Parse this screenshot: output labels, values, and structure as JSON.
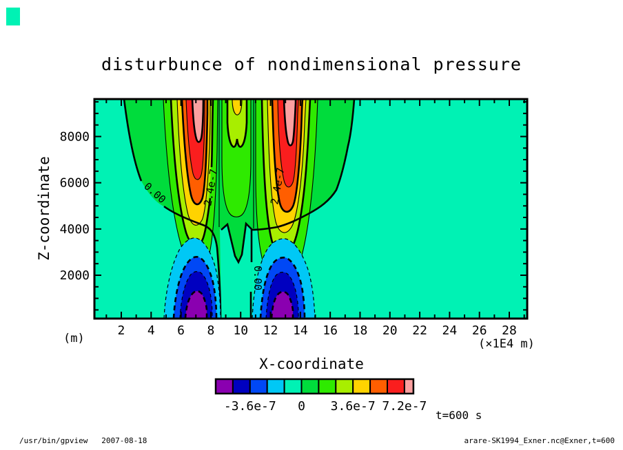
{
  "title": "disturbunce of nondimensional pressure",
  "axes": {
    "x": {
      "label": "X-coordinate",
      "unit_left": "(m)",
      "unit_right": "(×1E4 m)",
      "major_ticks": [
        2,
        4,
        6,
        8,
        10,
        12,
        14,
        16,
        18,
        20,
        22,
        24,
        26,
        28
      ],
      "range": [
        0.2,
        29.2
      ]
    },
    "z": {
      "label": "Z-coordinate",
      "major_ticks": [
        2000,
        4000,
        6000,
        8000
      ],
      "minor_step": 500,
      "range": [
        125,
        9620
      ]
    }
  },
  "colorbar": {
    "colors": [
      "#8a00b0",
      "#0000c0",
      "#0048f5",
      "#00c8f5",
      "#00f2b4",
      "#00dc3c",
      "#2eea00",
      "#a8ee00",
      "#ffd300",
      "#ff5e00",
      "#fa1e1e",
      "#fca0a0"
    ],
    "labels": [
      {
        "text": "-3.6e-7",
        "boundary": 2
      },
      {
        "text": "0",
        "boundary": 5
      },
      {
        "text": "3.6e-7",
        "boundary": 8
      },
      {
        "text": "7.2e-7",
        "boundary": 11
      }
    ]
  },
  "contour_labels": {
    "zero": "0.00",
    "pos": "2.4e-7"
  },
  "annotations": {
    "time": "t=600 s"
  },
  "footer": {
    "left": "/usr/bin/gpview   2007-08-18",
    "right": "arare-SK1994_Exner.nc@Exner,t=600"
  },
  "chart_data": {
    "type": "heatmap",
    "subtype": "filled-contour",
    "title": "disturbunce of nondimensional pressure",
    "xlabel": "X-coordinate",
    "ylabel": "Z-coordinate",
    "x_unit": "×1E4 m",
    "y_unit": "m",
    "x_ticks": [
      2,
      4,
      6,
      8,
      10,
      12,
      14,
      16,
      18,
      20,
      22,
      24,
      26,
      28
    ],
    "x_range": [
      0.2,
      29.2
    ],
    "y_ticks": [
      2000,
      4000,
      6000,
      8000
    ],
    "y_range": [
      125,
      9620
    ],
    "time": "t=600 s",
    "contour_interval": 1.2e-07,
    "thick_contour_interval": 2.4e-07,
    "labeled_contours": [
      "0.00",
      "2.4e-7"
    ],
    "negative_contour_style": "dashed",
    "levels": [
      -4.8e-07,
      -3.6e-07,
      -2.4e-07,
      -1.2e-07,
      0,
      1.2e-07,
      2.4e-07,
      3.6e-07,
      4.8e-07,
      6e-07,
      7.2e-07
    ],
    "colorbar_labels": [
      "-3.6e-7",
      "0",
      "3.6e-7",
      "7.2e-7"
    ],
    "palette": [
      "#8a00b0",
      "#0000c0",
      "#0048f5",
      "#00c8f5",
      "#00f2b4",
      "#00dc3c",
      "#2eea00",
      "#a8ee00",
      "#ffd300",
      "#ff5e00",
      "#fa1e1e",
      "#fca0a0"
    ],
    "background_value_band": [
      -1.2e-07,
      0
    ],
    "features": [
      {
        "name": "positive pressure plume",
        "x_center_x1e4m": 7,
        "z_extent_m": [
          4200,
          9600
        ],
        "peak": "> 7.2e-7 (pink core near z=8500-9600)"
      },
      {
        "name": "positive pressure plume",
        "x_center_x1e4m": 13,
        "z_extent_m": [
          4200,
          9600
        ],
        "peak": "> 7.2e-7 (pink core near z=8500-9600)"
      },
      {
        "name": "weak positive column",
        "x_center_x1e4m": 10.5,
        "z_extent_m": [
          7200,
          9600
        ],
        "peak": "~4.8e-7 (yellow cap at top)"
      },
      {
        "name": "negative pressure cell",
        "x_center_x1e4m": 7,
        "z_extent_m": [
          125,
          3600
        ],
        "min": "< -4.8e-7 (purple core near surface)"
      },
      {
        "name": "negative pressure cell",
        "x_center_x1e4m": 13,
        "z_extent_m": [
          125,
          3600
        ],
        "min": "< -4.8e-7 (purple core near surface)"
      },
      {
        "name": "near-zero channel",
        "x_center_x1e4m": 9.7,
        "z_extent_m": [
          125,
          4000
        ],
        "value": "slightly negative, bounded by 0.00 contour"
      }
    ]
  }
}
